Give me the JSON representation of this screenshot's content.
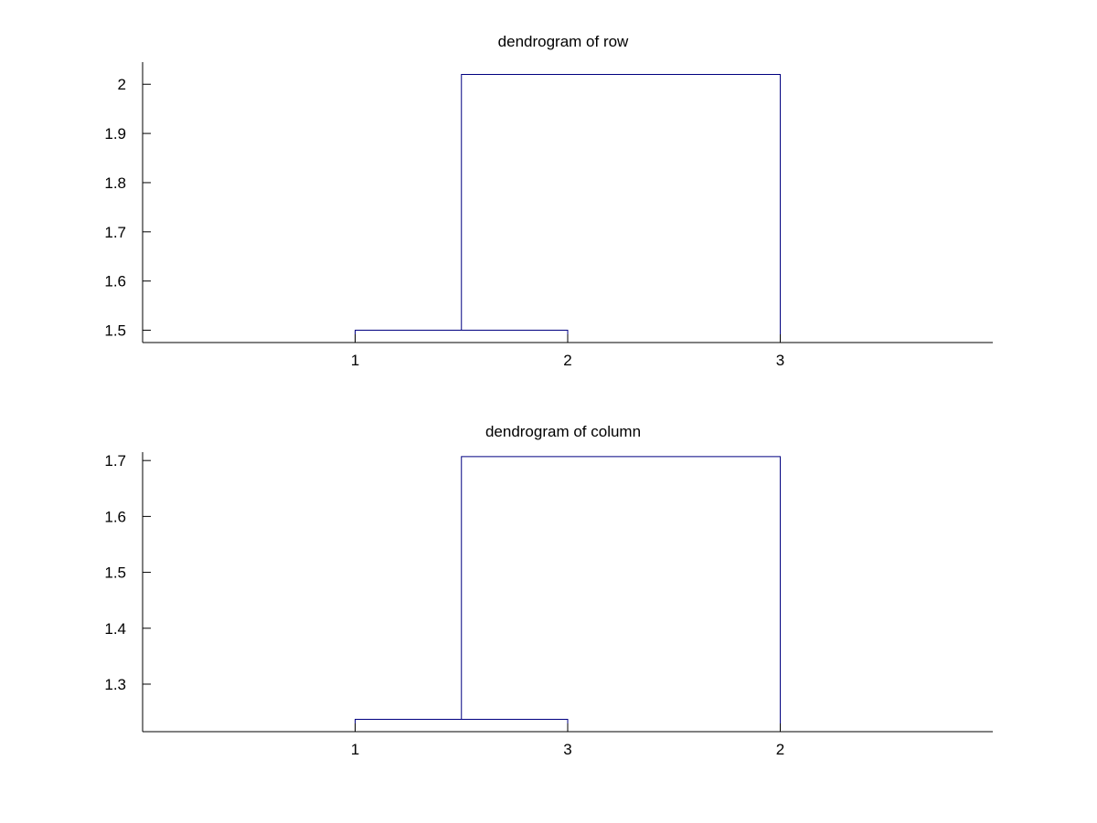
{
  "chart_data": [
    {
      "type": "dendrogram",
      "title": "dendrogram of row",
      "xlabel": "",
      "ylabel": "",
      "leaf_order": [
        "1",
        "2",
        "3"
      ],
      "ylim": [
        1.475,
        2.045
      ],
      "yticks": [
        1.5,
        1.6,
        1.7,
        1.8,
        1.9,
        2
      ],
      "ytick_labels": [
        "1.5",
        "1.6",
        "1.7",
        "1.8",
        "1.9",
        "2"
      ],
      "merges": [
        {
          "left": "1",
          "right": "2",
          "height": 1.5
        },
        {
          "left": "cluster(1,2)",
          "right": "3",
          "height": 2.02
        }
      ],
      "line_color": "#000080",
      "grid": false
    },
    {
      "type": "dendrogram",
      "title": "dendrogram of column",
      "xlabel": "",
      "ylabel": "",
      "leaf_order": [
        "1",
        "3",
        "2"
      ],
      "ylim": [
        1.215,
        1.715
      ],
      "yticks": [
        1.3,
        1.4,
        1.5,
        1.6,
        1.7
      ],
      "ytick_labels": [
        "1.3",
        "1.4",
        "1.5",
        "1.6",
        "1.7"
      ],
      "merges": [
        {
          "left": "1",
          "right": "3",
          "height": 1.237
        },
        {
          "left": "cluster(1,3)",
          "right": "2",
          "height": 1.707
        }
      ],
      "line_color": "#000080",
      "grid": false
    }
  ]
}
